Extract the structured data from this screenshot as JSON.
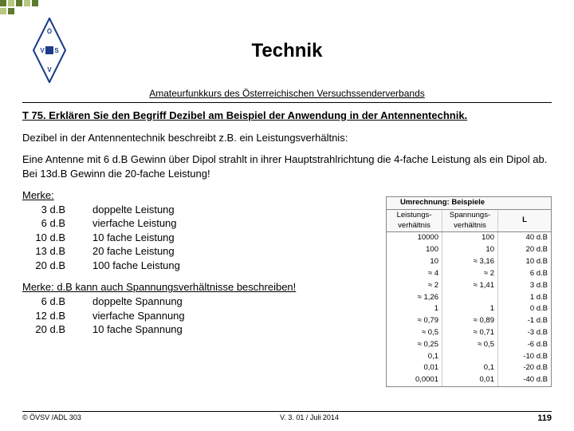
{
  "deco": [
    {
      "l": 0,
      "t": 0,
      "w": 8,
      "h": 8,
      "c": "#5d7a2e"
    },
    {
      "l": 10,
      "t": 0,
      "w": 8,
      "h": 8,
      "c": "#b8c87d"
    },
    {
      "l": 20,
      "t": 0,
      "w": 8,
      "h": 8,
      "c": "#5d7a2e"
    },
    {
      "l": 0,
      "t": 10,
      "w": 8,
      "h": 8,
      "c": "#b8c87d"
    },
    {
      "l": 10,
      "t": 10,
      "w": 8,
      "h": 8,
      "c": "#5d7a2e"
    },
    {
      "l": 30,
      "t": 0,
      "w": 8,
      "h": 8,
      "c": "#b8c87d"
    },
    {
      "l": 40,
      "t": 0,
      "w": 8,
      "h": 8,
      "c": "#5d7a2e"
    }
  ],
  "title": "Technik",
  "subtitle": "Amateurfunkkurs des Österreichischen Versuchssenderverbands",
  "question": {
    "num": "T 75.",
    "text": " Erklären Sie den Begriff Dezibel am Beispiel der Anwendung in der Antennentechnik."
  },
  "para1": "Dezibel in der Antennentechnik beschreibt z.B. ein Leistungsverhältnis:",
  "para2": "Eine Antenne mit 6 d.B Gewinn über Dipol strahlt in ihrer Hauptstrahlrichtung die 4-fache Leistung als ein Dipol ab. Bei 13d.B Gewinn die 20-fache Leistung!",
  "merke1": {
    "label": "Merke:",
    "rows": [
      {
        "db": "3 d.B",
        "v": "doppelte Leistung"
      },
      {
        "db": "6 d.B",
        "v": "vierfache Leistung"
      },
      {
        "db": "10 d.B",
        "v": "10 fache Leistung"
      },
      {
        "db": "13 d.B",
        "v": "20 fache Leistung"
      },
      {
        "db": "20 d.B",
        "v": "100 fache Leistung"
      }
    ]
  },
  "merke2": {
    "label": "Merke: d.B kann auch Spannungsverhältnisse beschreiben!",
    "rows": [
      {
        "db": "6 d.B",
        "v": "doppelte Spannung"
      },
      {
        "db": "12 d.B",
        "v": "vierfache Spannung"
      },
      {
        "db": "20 d.B",
        "v": "10 fache Spannung"
      }
    ]
  },
  "sideTable": {
    "title": "Umrechnung: Beispiele",
    "h1": "Leistungs-",
    "h2": "Spannungs-",
    "h3": "L",
    "sub": "verhältnis",
    "rows": [
      {
        "p": "10000",
        "s": "100",
        "l": "40 d.B"
      },
      {
        "p": "100",
        "s": "10",
        "l": "20 d.B"
      },
      {
        "p": "10",
        "s": "≈ 3,16",
        "l": "10 d.B"
      },
      {
        "p": "≈ 4",
        "s": "≈ 2",
        "l": "6 d.B"
      },
      {
        "p": "≈ 2",
        "s": "≈ 1,41",
        "l": "3 d.B"
      },
      {
        "p": "≈ 1,26",
        "s": "",
        "l": "1 d.B"
      },
      {
        "p": "1",
        "s": "1",
        "l": "0 d.B"
      },
      {
        "p": "≈ 0,79",
        "s": "≈ 0,89",
        "l": "-1 d.B"
      },
      {
        "p": "≈ 0,5",
        "s": "≈ 0,71",
        "l": "-3 d.B"
      },
      {
        "p": "≈ 0,25",
        "s": "≈ 0,5",
        "l": "-6 d.B"
      },
      {
        "p": "0,1",
        "s": "",
        "l": "-10 d.B"
      },
      {
        "p": "0,01",
        "s": "0,1",
        "l": "-20 d.B"
      },
      {
        "p": "0,0001",
        "s": "0,01",
        "l": "-40 d.B"
      }
    ]
  },
  "footer": {
    "left": "© ÖVSV /ADL 303",
    "center": "V. 3. 01 / Juli 2014",
    "page": "119"
  },
  "logo": {
    "stroke": "#1a3a8a"
  }
}
